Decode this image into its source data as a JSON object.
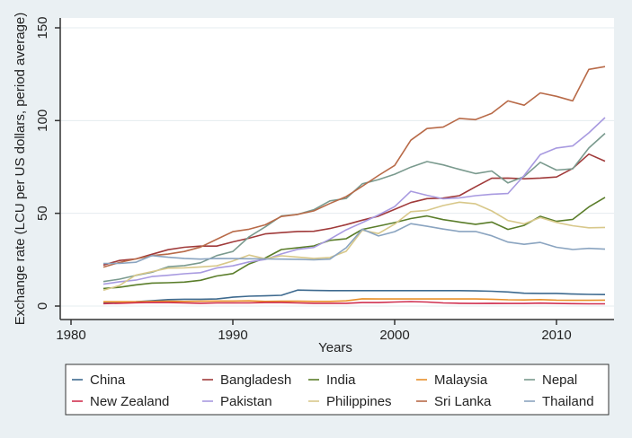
{
  "chart_data": {
    "type": "line",
    "title": "",
    "xlabel": "Years",
    "ylabel": "Exchange rate (LCU per US dollars, period average)",
    "xlim": [
      1980,
      2013
    ],
    "ylim": [
      0,
      150
    ],
    "xticks": [
      1980,
      1990,
      2000,
      2010
    ],
    "yticks": [
      0,
      50,
      100,
      150
    ],
    "grid": "horizontal",
    "legend_position": "bottom",
    "x": [
      1982,
      1983,
      1984,
      1985,
      1986,
      1987,
      1988,
      1989,
      1990,
      1991,
      1992,
      1993,
      1994,
      1995,
      1996,
      1997,
      1998,
      1999,
      2000,
      2001,
      2002,
      2003,
      2004,
      2005,
      2006,
      2007,
      2008,
      2009,
      2010,
      2011,
      2012,
      2013
    ],
    "series": [
      {
        "name": "China",
        "color": "#3e6a8f",
        "values": [
          1.9,
          2.0,
          2.3,
          2.9,
          3.5,
          3.7,
          3.7,
          3.8,
          4.8,
          5.3,
          5.5,
          5.8,
          8.6,
          8.4,
          8.3,
          8.3,
          8.3,
          8.3,
          8.3,
          8.3,
          8.3,
          8.3,
          8.3,
          8.2,
          8.0,
          7.6,
          6.9,
          6.8,
          6.8,
          6.5,
          6.3,
          6.2
        ]
      },
      {
        "name": "Bangladesh",
        "color": "#a03a3a",
        "values": [
          22.1,
          24.6,
          25.4,
          27.9,
          30.4,
          31.7,
          32.3,
          32.3,
          34.6,
          36.6,
          38.9,
          39.6,
          40.2,
          40.3,
          41.8,
          43.9,
          46.3,
          48.5,
          52.1,
          55.8,
          57.9,
          58.2,
          59.5,
          64.3,
          68.9,
          69.0,
          68.6,
          69.0,
          69.6,
          74.2,
          81.9,
          78.1
        ]
      },
      {
        "name": "India",
        "color": "#5a7d2a",
        "values": [
          9.5,
          10.1,
          11.4,
          12.4,
          12.6,
          12.9,
          13.9,
          16.2,
          17.5,
          22.7,
          25.9,
          30.5,
          31.4,
          32.4,
          35.4,
          36.3,
          41.3,
          43.1,
          45.0,
          47.2,
          48.6,
          46.6,
          45.3,
          44.1,
          45.3,
          41.3,
          43.5,
          48.4,
          45.7,
          46.7,
          53.4,
          58.6
        ]
      },
      {
        "name": "Malaysia",
        "color": "#e8902a",
        "values": [
          2.3,
          2.3,
          2.3,
          2.5,
          2.6,
          2.5,
          2.6,
          2.7,
          2.7,
          2.8,
          2.5,
          2.6,
          2.6,
          2.5,
          2.5,
          2.8,
          3.9,
          3.8,
          3.8,
          3.8,
          3.8,
          3.8,
          3.8,
          3.8,
          3.7,
          3.4,
          3.3,
          3.5,
          3.2,
          3.1,
          3.1,
          3.2
        ]
      },
      {
        "name": "Nepal",
        "color": "#7a9a8e",
        "values": [
          13.2,
          14.5,
          16.5,
          18.2,
          21.2,
          21.8,
          23.3,
          27.2,
          29.4,
          37.3,
          42.7,
          48.6,
          49.4,
          51.9,
          56.7,
          58.0,
          65.9,
          68.2,
          71.1,
          74.9,
          77.9,
          76.1,
          73.7,
          71.4,
          72.8,
          66.4,
          69.8,
          77.5,
          73.3,
          74.0,
          85.2,
          93.1
        ]
      },
      {
        "name": "New Zealand",
        "color": "#d03050",
        "values": [
          1.3,
          1.5,
          1.8,
          2.0,
          1.9,
          1.7,
          1.5,
          1.7,
          1.7,
          1.7,
          1.9,
          1.9,
          1.7,
          1.5,
          1.5,
          1.5,
          1.9,
          1.9,
          2.2,
          2.4,
          2.2,
          1.7,
          1.5,
          1.4,
          1.5,
          1.4,
          1.4,
          1.6,
          1.4,
          1.3,
          1.2,
          1.2
        ]
      },
      {
        "name": "Pakistan",
        "color": "#a89ae0",
        "values": [
          11.8,
          13.1,
          14.0,
          15.9,
          16.6,
          17.4,
          18.0,
          20.5,
          21.7,
          23.8,
          25.1,
          28.1,
          30.6,
          31.6,
          36.1,
          41.1,
          45.0,
          49.1,
          53.6,
          61.9,
          59.7,
          57.8,
          58.3,
          59.5,
          60.3,
          60.7,
          70.4,
          81.7,
          85.2,
          86.3,
          93.4,
          101.6
        ]
      },
      {
        "name": "Philippines",
        "color": "#d8c88a",
        "values": [
          8.5,
          11.1,
          16.7,
          18.6,
          20.4,
          20.6,
          21.1,
          21.7,
          24.3,
          27.5,
          25.5,
          27.1,
          26.4,
          25.7,
          26.2,
          29.5,
          40.9,
          39.1,
          44.2,
          50.9,
          51.6,
          54.2,
          56.0,
          55.1,
          51.3,
          46.1,
          44.3,
          47.7,
          45.1,
          43.3,
          42.2,
          42.4
        ]
      },
      {
        "name": "Sri Lanka",
        "color": "#b86a48",
        "values": [
          21.0,
          23.5,
          25.4,
          27.2,
          28.0,
          29.4,
          31.8,
          36.0,
          40.1,
          41.4,
          43.8,
          48.3,
          49.4,
          51.3,
          55.3,
          59.0,
          64.6,
          70.4,
          75.8,
          89.4,
          95.7,
          96.5,
          101.2,
          100.5,
          103.9,
          110.6,
          108.3,
          114.9,
          113.1,
          110.6,
          127.6,
          129.1
        ]
      },
      {
        "name": "Thailand",
        "color": "#8aa4c0",
        "values": [
          23.0,
          23.0,
          23.6,
          27.2,
          26.3,
          25.7,
          25.3,
          25.7,
          25.6,
          25.5,
          25.4,
          25.3,
          25.2,
          24.9,
          25.3,
          31.4,
          41.4,
          37.8,
          40.1,
          44.4,
          43.0,
          41.5,
          40.2,
          40.2,
          37.9,
          34.5,
          33.3,
          34.3,
          31.7,
          30.5,
          31.1,
          30.7
        ]
      }
    ]
  }
}
